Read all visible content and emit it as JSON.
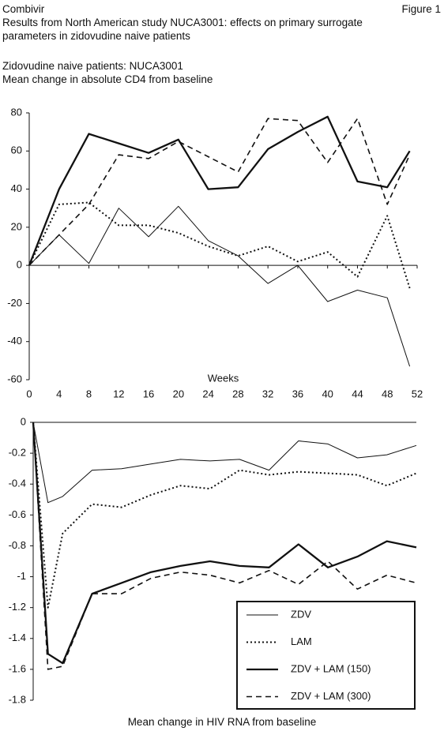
{
  "header": {
    "product": "Combivir",
    "figure": "Figure 1",
    "title": "Results from North American study NUCA3001: effects on primary surrogate parameters in zidovudine naive patients"
  },
  "chart_data": [
    {
      "type": "line",
      "title": "Zidovudine naive patients: NUCA3001",
      "subtitle": "Mean change in absolute CD4 from baseline",
      "x_label": "Weeks",
      "x": [
        0,
        4,
        8,
        12,
        16,
        20,
        24,
        28,
        32,
        36,
        40,
        44,
        48,
        51
      ],
      "xlim": [
        0,
        52
      ],
      "xticks": [
        0,
        4,
        8,
        12,
        16,
        20,
        24,
        28,
        32,
        36,
        40,
        44,
        48,
        52
      ],
      "ylim": [
        -60,
        80
      ],
      "yticks": [
        -60,
        -40,
        -20,
        0,
        20,
        40,
        60,
        80
      ],
      "grid": false,
      "series": [
        {
          "color": "#111111",
          "style": "thin",
          "values": [
            0,
            16,
            1,
            30,
            15,
            31,
            13,
            5,
            -9.5,
            0,
            -19,
            -13,
            -17,
            -53
          ]
        },
        {
          "color": "#111111",
          "style": "dotted",
          "values": [
            0,
            32,
            33,
            21,
            21,
            17,
            10,
            5,
            10,
            2,
            7,
            -6,
            26,
            -12
          ]
        },
        {
          "color": "#111111",
          "style": "thick",
          "values": [
            0,
            40,
            69,
            64,
            59,
            66,
            40,
            41,
            61,
            70,
            78,
            44,
            41,
            60
          ]
        },
        {
          "color": "#111111",
          "style": "dashed",
          "values": [
            0,
            16,
            32,
            58,
            56,
            65,
            57,
            49,
            77,
            76,
            54,
            77,
            32,
            58
          ]
        }
      ]
    },
    {
      "type": "line",
      "title": "Mean change in HIV RNA from baseline",
      "x": [
        0,
        2,
        4,
        8,
        12,
        16,
        20,
        24,
        28,
        32,
        36,
        40,
        44,
        48,
        52
      ],
      "xlim": [
        0,
        52
      ],
      "ylim": [
        -1.8,
        0
      ],
      "yticks": [
        -1.8,
        -1.6,
        -1.4,
        -1.2,
        -1,
        -0.8,
        -0.6,
        -0.4,
        -0.2,
        0
      ],
      "grid": false,
      "legend": "lower right",
      "series": [
        {
          "name": "ZDV",
          "color": "#111111",
          "style": "thin",
          "values": [
            0,
            -0.52,
            -0.48,
            -0.31,
            -0.3,
            -0.27,
            -0.24,
            -0.25,
            -0.24,
            -0.31,
            -0.12,
            -0.14,
            -0.23,
            -0.21,
            -0.15
          ]
        },
        {
          "name": "LAM",
          "color": "#111111",
          "style": "dotted",
          "values": [
            0,
            -1.2,
            -0.72,
            -0.53,
            -0.55,
            -0.47,
            -0.41,
            -0.43,
            -0.31,
            -0.34,
            -0.32,
            -0.33,
            -0.34,
            -0.41,
            -0.33
          ]
        },
        {
          "name": "ZDV + LAM (150)",
          "color": "#111111",
          "style": "thick",
          "values": [
            0,
            -1.5,
            -1.56,
            -1.11,
            -1.04,
            -0.97,
            -0.93,
            -0.9,
            -0.93,
            -0.94,
            -0.79,
            -0.94,
            -0.87,
            -0.77,
            -0.81
          ]
        },
        {
          "name": "ZDV + LAM (300)",
          "color": "#111111",
          "style": "dashed",
          "values": [
            0,
            -1.6,
            -1.58,
            -1.11,
            -1.11,
            -1.01,
            -0.97,
            -0.99,
            -1.04,
            -0.96,
            -1.05,
            -0.9,
            -1.08,
            -0.99,
            -1.04
          ]
        }
      ]
    }
  ]
}
